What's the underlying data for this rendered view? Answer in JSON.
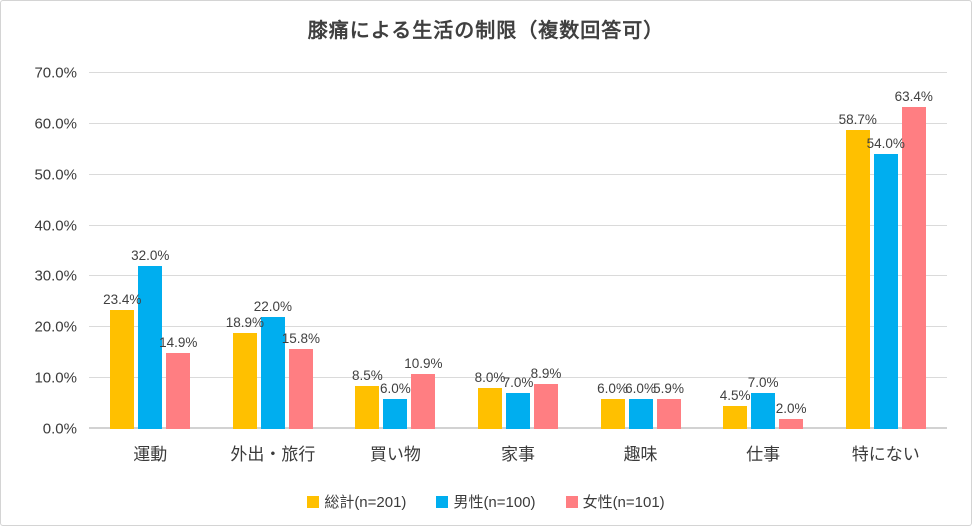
{
  "window": {
    "background": "#ffffff",
    "border_color": "#d4d4d4"
  },
  "chart_data": {
    "type": "bar",
    "title": "膝痛による生活の制限（複数回答可）",
    "categories": [
      "運動",
      "外出・旅行",
      "買い物",
      "家事",
      "趣味",
      "仕事",
      "特にない"
    ],
    "series": [
      {
        "name": "総計(n=201)",
        "color": "#FFC000",
        "values": [
          23.4,
          18.9,
          8.5,
          8.0,
          6.0,
          4.5,
          58.7
        ]
      },
      {
        "name": "男性(n=100)",
        "color": "#00AEEF",
        "values": [
          32.0,
          22.0,
          6.0,
          7.0,
          6.0,
          7.0,
          54.0
        ]
      },
      {
        "name": "女性(n=101)",
        "color": "#FF7E82",
        "values": [
          14.9,
          15.8,
          10.9,
          8.9,
          5.9,
          2.0,
          63.4
        ]
      }
    ],
    "y_axis": {
      "min": 0,
      "max": 70,
      "step": 10,
      "tick_labels": [
        "0.0%",
        "10.0%",
        "20.0%",
        "30.0%",
        "40.0%",
        "50.0%",
        "60.0%",
        "70.0%"
      ]
    },
    "value_suffix": "%",
    "value_decimals": 1,
    "grid": true,
    "legend_position": "bottom",
    "data_labels": true
  }
}
